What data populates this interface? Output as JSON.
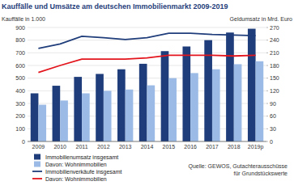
{
  "chart_data": {
    "type": "bar",
    "title": "Kauffälle und Umsätze am deutschen Immobilienmarkt 2009-2019",
    "y_label": "Kauffälle in 1.000",
    "y2_label": "Geldumsatz in Mrd. Euro",
    "annotations": [
      "Quelle: GEWOS, Gutachterausschüsse",
      "für Grundstückswerte"
    ],
    "categories": [
      "2009",
      "2010",
      "2011",
      "2012",
      "2013",
      "2014",
      "2015",
      "2016",
      "2017",
      "2018",
      "2019p"
    ],
    "series": [
      {
        "name": "Immobilienumsatz insgesamt",
        "type": "bar",
        "axis": "y2",
        "color": "#1f3d7a",
        "values": [
          114,
          132,
          153,
          160,
          171,
          184,
          214,
          225,
          240,
          258,
          267
        ]
      },
      {
        "name": "Davon: Wohnimmobilien",
        "type": "bar",
        "axis": "y2",
        "color": "#9bbbe6",
        "values": [
          87,
          97,
          114,
          120,
          123,
          133,
          150,
          162,
          171,
          183,
          190
        ]
      },
      {
        "name": "Immobilienverkäufe insgesamt",
        "type": "line",
        "color": "#1f3d7a",
        "line_style": "solid",
        "values": [
          735,
          770,
          830,
          820,
          805,
          820,
          855,
          855,
          845,
          840,
          835
        ]
      },
      {
        "name": "Davon: Wohnimmobilien",
        "type": "line",
        "color": "#e3141c",
        "line_style": "solid",
        "values": [
          545,
          600,
          650,
          650,
          650,
          660,
          680,
          680,
          680,
          675,
          680
        ]
      }
    ],
    "ylim": [
      0,
      900
    ],
    "yticks": [
      0,
      100,
      200,
      300,
      400,
      500,
      600,
      700,
      800,
      900
    ],
    "y2lim": [
      0,
      270
    ],
    "y2ticks": [
      0,
      30,
      60,
      90,
      120,
      150,
      180,
      210,
      240,
      270
    ],
    "grid": true
  }
}
